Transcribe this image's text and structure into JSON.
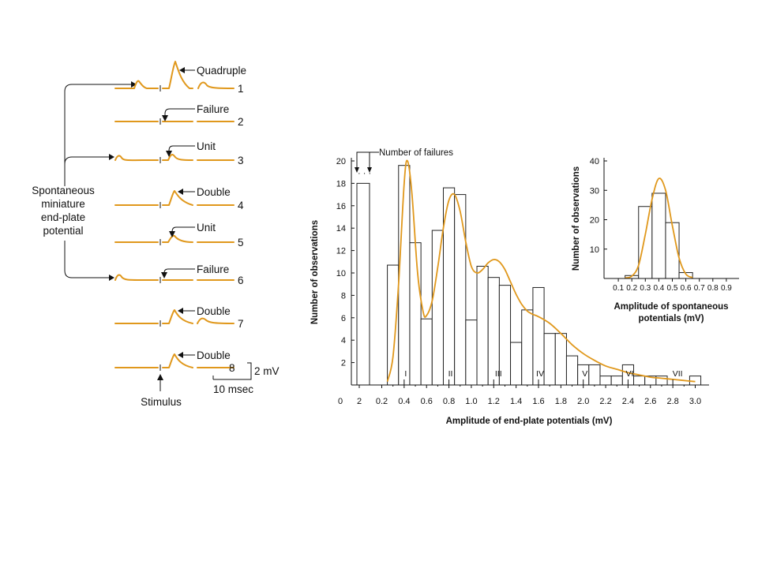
{
  "colors": {
    "trace": "#E0981C",
    "ink": "#111111",
    "background": "#ffffff"
  },
  "traces": {
    "bracket_label_lines": [
      "Spontaneous",
      "miniature",
      "end-plate",
      "potential"
    ],
    "rows": [
      {
        "number": "1",
        "label": "Quadruple"
      },
      {
        "number": "2",
        "label": "Failure"
      },
      {
        "number": "3",
        "label": "Unit"
      },
      {
        "number": "4",
        "label": "Double"
      },
      {
        "number": "5",
        "label": "Unit"
      },
      {
        "number": "6",
        "label": "Failure"
      },
      {
        "number": "7",
        "label": "Double"
      },
      {
        "number": "8",
        "label": "Double"
      }
    ],
    "stimulus_label": "Stimulus",
    "scale_voltage": "2 mV",
    "scale_time": "10 msec"
  },
  "chart_data": [
    {
      "type": "bar",
      "xlabel": "Amplitude of end-plate potentials (mV)",
      "ylabel": "Number of observations",
      "ylim": [
        0,
        20
      ],
      "yticks": [
        "2",
        "4",
        "6",
        "8",
        "10",
        "12",
        "14",
        "16",
        "18",
        "20"
      ],
      "xticks": [
        "0",
        "2",
        "0.2",
        "0.4",
        "0.6",
        "0.8",
        "1.0",
        "1.2",
        "1.4",
        "1.6",
        "1.8",
        "2.0",
        "2.2",
        "2.4",
        "2.6",
        "2.8",
        "3.0"
      ],
      "annotation": "Number of failures",
      "failures_value": 18,
      "bin_width": 0.1,
      "bars": [
        {
          "x": 0.3,
          "y": 10.7
        },
        {
          "x": 0.4,
          "y": 19.6
        },
        {
          "x": 0.5,
          "y": 12.7
        },
        {
          "x": 0.6,
          "y": 5.9
        },
        {
          "x": 0.7,
          "y": 13.8
        },
        {
          "x": 0.8,
          "y": 17.6
        },
        {
          "x": 0.9,
          "y": 17.0
        },
        {
          "x": 1.0,
          "y": 5.8
        },
        {
          "x": 1.1,
          "y": 10.6
        },
        {
          "x": 1.2,
          "y": 9.6
        },
        {
          "x": 1.3,
          "y": 8.9
        },
        {
          "x": 1.4,
          "y": 3.8
        },
        {
          "x": 1.5,
          "y": 6.7
        },
        {
          "x": 1.6,
          "y": 8.7
        },
        {
          "x": 1.7,
          "y": 4.6
        },
        {
          "x": 1.8,
          "y": 4.6
        },
        {
          "x": 1.9,
          "y": 2.6
        },
        {
          "x": 2.0,
          "y": 1.8
        },
        {
          "x": 2.1,
          "y": 1.8
        },
        {
          "x": 2.2,
          "y": 0.8
        },
        {
          "x": 2.3,
          "y": 0.8
        },
        {
          "x": 2.4,
          "y": 1.8
        },
        {
          "x": 2.5,
          "y": 0.8
        },
        {
          "x": 2.6,
          "y": 0.8
        },
        {
          "x": 2.7,
          "y": 0.8
        },
        {
          "x": 3.0,
          "y": 0.8
        }
      ],
      "fit_curve": [
        [
          0.25,
          0.3
        ],
        [
          0.3,
          2.5
        ],
        [
          0.35,
          9.0
        ],
        [
          0.4,
          18.0
        ],
        [
          0.43,
          20.0
        ],
        [
          0.47,
          17.0
        ],
        [
          0.52,
          10.0
        ],
        [
          0.57,
          6.5
        ],
        [
          0.6,
          6.2
        ],
        [
          0.65,
          7.5
        ],
        [
          0.7,
          10.5
        ],
        [
          0.75,
          14.0
        ],
        [
          0.8,
          16.5
        ],
        [
          0.85,
          17.0
        ],
        [
          0.9,
          15.5
        ],
        [
          0.95,
          12.8
        ],
        [
          1.0,
          10.6
        ],
        [
          1.05,
          10.0
        ],
        [
          1.1,
          10.3
        ],
        [
          1.15,
          10.9
        ],
        [
          1.2,
          11.2
        ],
        [
          1.25,
          11.0
        ],
        [
          1.3,
          10.3
        ],
        [
          1.35,
          9.2
        ],
        [
          1.4,
          8.1
        ],
        [
          1.45,
          7.2
        ],
        [
          1.5,
          6.6
        ],
        [
          1.55,
          6.3
        ],
        [
          1.6,
          6.1
        ],
        [
          1.7,
          5.5
        ],
        [
          1.8,
          4.6
        ],
        [
          1.9,
          3.6
        ],
        [
          2.0,
          2.8
        ],
        [
          2.1,
          2.2
        ],
        [
          2.2,
          1.7
        ],
        [
          2.3,
          1.4
        ],
        [
          2.4,
          1.1
        ],
        [
          2.5,
          0.9
        ],
        [
          2.6,
          0.7
        ],
        [
          2.7,
          0.6
        ],
        [
          2.8,
          0.5
        ],
        [
          2.9,
          0.4
        ],
        [
          3.0,
          0.3
        ]
      ],
      "peaks": [
        {
          "label": "I",
          "x": 0.4
        },
        {
          "label": "II",
          "x": 0.8
        },
        {
          "label": "III",
          "x": 1.2
        },
        {
          "label": "IV",
          "x": 1.6
        },
        {
          "label": "V",
          "x": 2.0
        },
        {
          "label": "VI",
          "x": 2.4
        },
        {
          "label": "VII",
          "x": 2.8
        }
      ]
    },
    {
      "type": "bar",
      "xlabel_lines": [
        "Amplitude of spontaneous",
        "potentials (mV)"
      ],
      "ylabel": "Number of observations",
      "ylim": [
        0,
        40
      ],
      "yticks": [
        "10",
        "20",
        "30",
        "40"
      ],
      "xticks": [
        "0.1",
        "0.2",
        "0.3",
        "0.4",
        "0.5",
        "0.6",
        "0.7",
        "0.8",
        "0.9"
      ],
      "bin_width": 0.1,
      "bars": [
        {
          "x": 0.2,
          "y": 1
        },
        {
          "x": 0.3,
          "y": 24.5
        },
        {
          "x": 0.4,
          "y": 29
        },
        {
          "x": 0.5,
          "y": 19
        },
        {
          "x": 0.6,
          "y": 2
        }
      ],
      "fit_curve": [
        [
          0.15,
          0.2
        ],
        [
          0.2,
          0.8
        ],
        [
          0.25,
          4.5
        ],
        [
          0.3,
          15.0
        ],
        [
          0.35,
          27.0
        ],
        [
          0.4,
          34.0
        ],
        [
          0.45,
          30.0
        ],
        [
          0.5,
          18.0
        ],
        [
          0.55,
          7.0
        ],
        [
          0.6,
          1.5
        ],
        [
          0.65,
          0.3
        ]
      ]
    }
  ]
}
